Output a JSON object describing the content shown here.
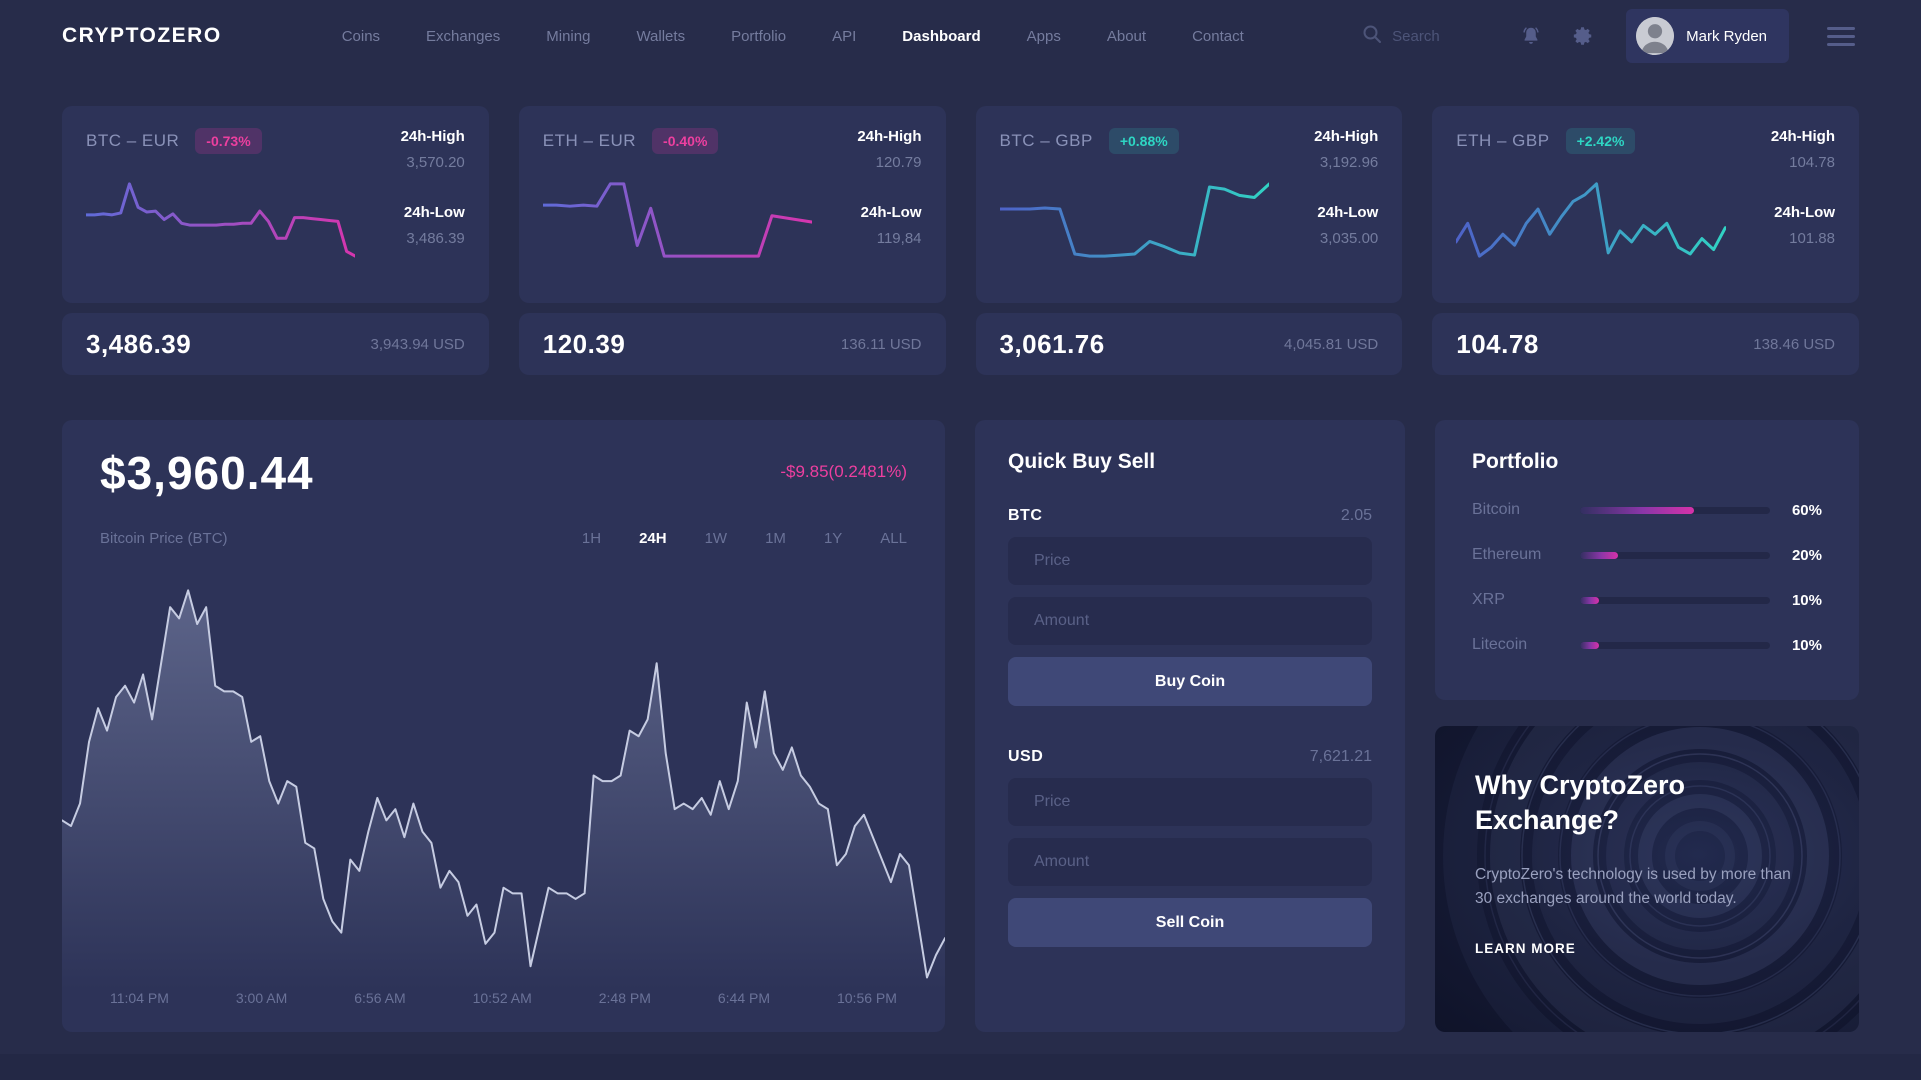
{
  "nav": {
    "logo": "CRYPTOZERO",
    "items": [
      {
        "label": "Coins",
        "active": false
      },
      {
        "label": "Exchanges",
        "active": false
      },
      {
        "label": "Mining",
        "active": false
      },
      {
        "label": "Wallets",
        "active": false
      },
      {
        "label": "Portfolio",
        "active": false
      },
      {
        "label": "API",
        "active": false
      },
      {
        "label": "Dashboard",
        "active": true
      },
      {
        "label": "Apps",
        "active": false
      },
      {
        "label": "About",
        "active": false
      },
      {
        "label": "Contact",
        "active": false
      }
    ],
    "search_placeholder": "Search",
    "user_name": "Mark Ryden"
  },
  "ticker_cards": [
    {
      "pair": "BTC – EUR",
      "change": "-0.73%",
      "direction": "down",
      "high_label": "24h-High",
      "high": "3,570.20",
      "low_label": "24h-Low",
      "low": "3,486.39",
      "price": "3,486.39",
      "price_usd": "3,943.94 USD"
    },
    {
      "pair": "ETH – EUR",
      "change": "-0.40%",
      "direction": "down",
      "high_label": "24h-High",
      "high": "120.79",
      "low_label": "24h-Low",
      "low": "119,84",
      "price": "120.39",
      "price_usd": "136.11 USD"
    },
    {
      "pair": "BTC – GBP",
      "change": "+0.88%",
      "direction": "up",
      "high_label": "24h-High",
      "high": "3,192.96",
      "low_label": "24h-Low",
      "low": "3,035.00",
      "price": "3,061.76",
      "price_usd": "4,045.81 USD"
    },
    {
      "pair": "ETH – GBP",
      "change": "+2.42%",
      "direction": "up",
      "high_label": "24h-High",
      "high": "104.78",
      "low_label": "24h-Low",
      "low": "101.88",
      "price": "104.78",
      "price_usd": "138.46 USD"
    }
  ],
  "main_chart": {
    "price": "$3,960.44",
    "change": "-$9.85(0.2481%)",
    "label": "Bitcoin Price (BTC)",
    "ranges": [
      "1H",
      "24H",
      "1W",
      "1M",
      "1Y",
      "ALL"
    ],
    "active_range": "24H",
    "times": [
      "11:04 PM",
      "3:00 AM",
      "6:56 AM",
      "10:52 AM",
      "2:48 PM",
      "6:44 PM",
      "10:56 PM"
    ]
  },
  "chart_data": [
    {
      "type": "line",
      "name": "spark-btc-eur",
      "trend": "down",
      "stroke_start": "#5F6BD8",
      "stroke_end": "#D635AE",
      "y_normalized": [
        55,
        55,
        56,
        55,
        57,
        88,
        63,
        58,
        59,
        50,
        56,
        46,
        44,
        44,
        44,
        44,
        45,
        45,
        46,
        46,
        59,
        48,
        30,
        30,
        52,
        52,
        51,
        50,
        49,
        48,
        16,
        11
      ]
    },
    {
      "type": "line",
      "name": "spark-eth-eur",
      "trend": "down",
      "stroke_start": "#5F6BD8",
      "stroke_end": "#D635AE",
      "y_normalized": [
        58,
        58,
        57,
        58,
        57,
        78,
        78,
        20,
        55,
        10,
        10,
        10,
        10,
        10,
        10,
        10,
        10,
        48,
        46,
        44,
        42
      ]
    },
    {
      "type": "line",
      "name": "spark-btc-gbp",
      "trend": "up",
      "stroke_start": "#4E62C8",
      "stroke_end": "#31D3C4",
      "y_normalized": [
        55,
        55,
        55,
        56,
        55,
        12,
        10,
        10,
        11,
        12,
        24,
        19,
        13,
        11,
        76,
        74,
        68,
        66,
        79
      ]
    },
    {
      "type": "line",
      "name": "spark-eth-gbp",
      "trend": "up",
      "stroke_start": "#4E62C8",
      "stroke_end": "#31D3C4",
      "y_normalized": [
        35,
        52,
        22,
        30,
        42,
        32,
        52,
        65,
        42,
        58,
        72,
        78,
        88,
        25,
        45,
        35,
        50,
        42,
        52,
        30,
        24,
        38,
        28,
        48
      ]
    },
    {
      "type": "area",
      "name": "bitcoin-price-24h",
      "title": "Bitcoin Price (BTC)",
      "x_labels": [
        "11:04 PM",
        "3:00 AM",
        "6:56 AM",
        "10:52 AM",
        "2:48 PM",
        "6:44 PM",
        "10:56 PM"
      ],
      "stroke_start": "#C6CCE2",
      "stroke_end": "#C6CCE2",
      "fill_top": "rgba(158,168,205,0.42)",
      "fill_bottom": "rgba(158,168,205,0)",
      "y_normalized": [
        50,
        49,
        53,
        64,
        70,
        66,
        72,
        74,
        71,
        76,
        68,
        78,
        88,
        86,
        91,
        85,
        88,
        74,
        73,
        73,
        72,
        64,
        65,
        57,
        53,
        57,
        56,
        46,
        45,
        36,
        32,
        30,
        43,
        41,
        48,
        54,
        50,
        52,
        47,
        53,
        48,
        46,
        38,
        41,
        39,
        33,
        35,
        28,
        30,
        38,
        37,
        37,
        24,
        31,
        38,
        37,
        37,
        36,
        37,
        58,
        57,
        57,
        58,
        66,
        65,
        68,
        78,
        62,
        52,
        53,
        52,
        54,
        51,
        57,
        52,
        57,
        71,
        63,
        73,
        62,
        59,
        63,
        58,
        56,
        53,
        52,
        42,
        44,
        49,
        51,
        47,
        43,
        39,
        44,
        42,
        32,
        22,
        26,
        29
      ]
    }
  ],
  "quick_buy_sell": {
    "title": "Quick Buy Sell",
    "buy": {
      "currency": "BTC",
      "balance": "2.05",
      "price_placeholder": "Price",
      "amount_placeholder": "Amount",
      "button": "Buy Coin"
    },
    "sell": {
      "currency": "USD",
      "balance": "7,621.21",
      "price_placeholder": "Price",
      "amount_placeholder": "Amount",
      "button": "Sell Coin"
    }
  },
  "portfolio": {
    "title": "Portfolio",
    "holdings": [
      {
        "name": "Bitcoin",
        "percent": 60,
        "percent_label": "60%"
      },
      {
        "name": "Ethereum",
        "percent": 20,
        "percent_label": "20%"
      },
      {
        "name": "XRP",
        "percent": 10,
        "percent_label": "10%"
      },
      {
        "name": "Litecoin",
        "percent": 10,
        "percent_label": "10%"
      }
    ]
  },
  "promo": {
    "title": "Why CryptoZero Exchange?",
    "body": "CryptoZero's technology is used by more than 30 exchanges around the world today.",
    "cta": "LEARN MORE"
  },
  "colors": {
    "background": "#272C4A",
    "card": "#2D3358",
    "accent_pink": "#ED3F9F",
    "accent_teal": "#2ED6C3",
    "muted_text": "#6A7298"
  }
}
